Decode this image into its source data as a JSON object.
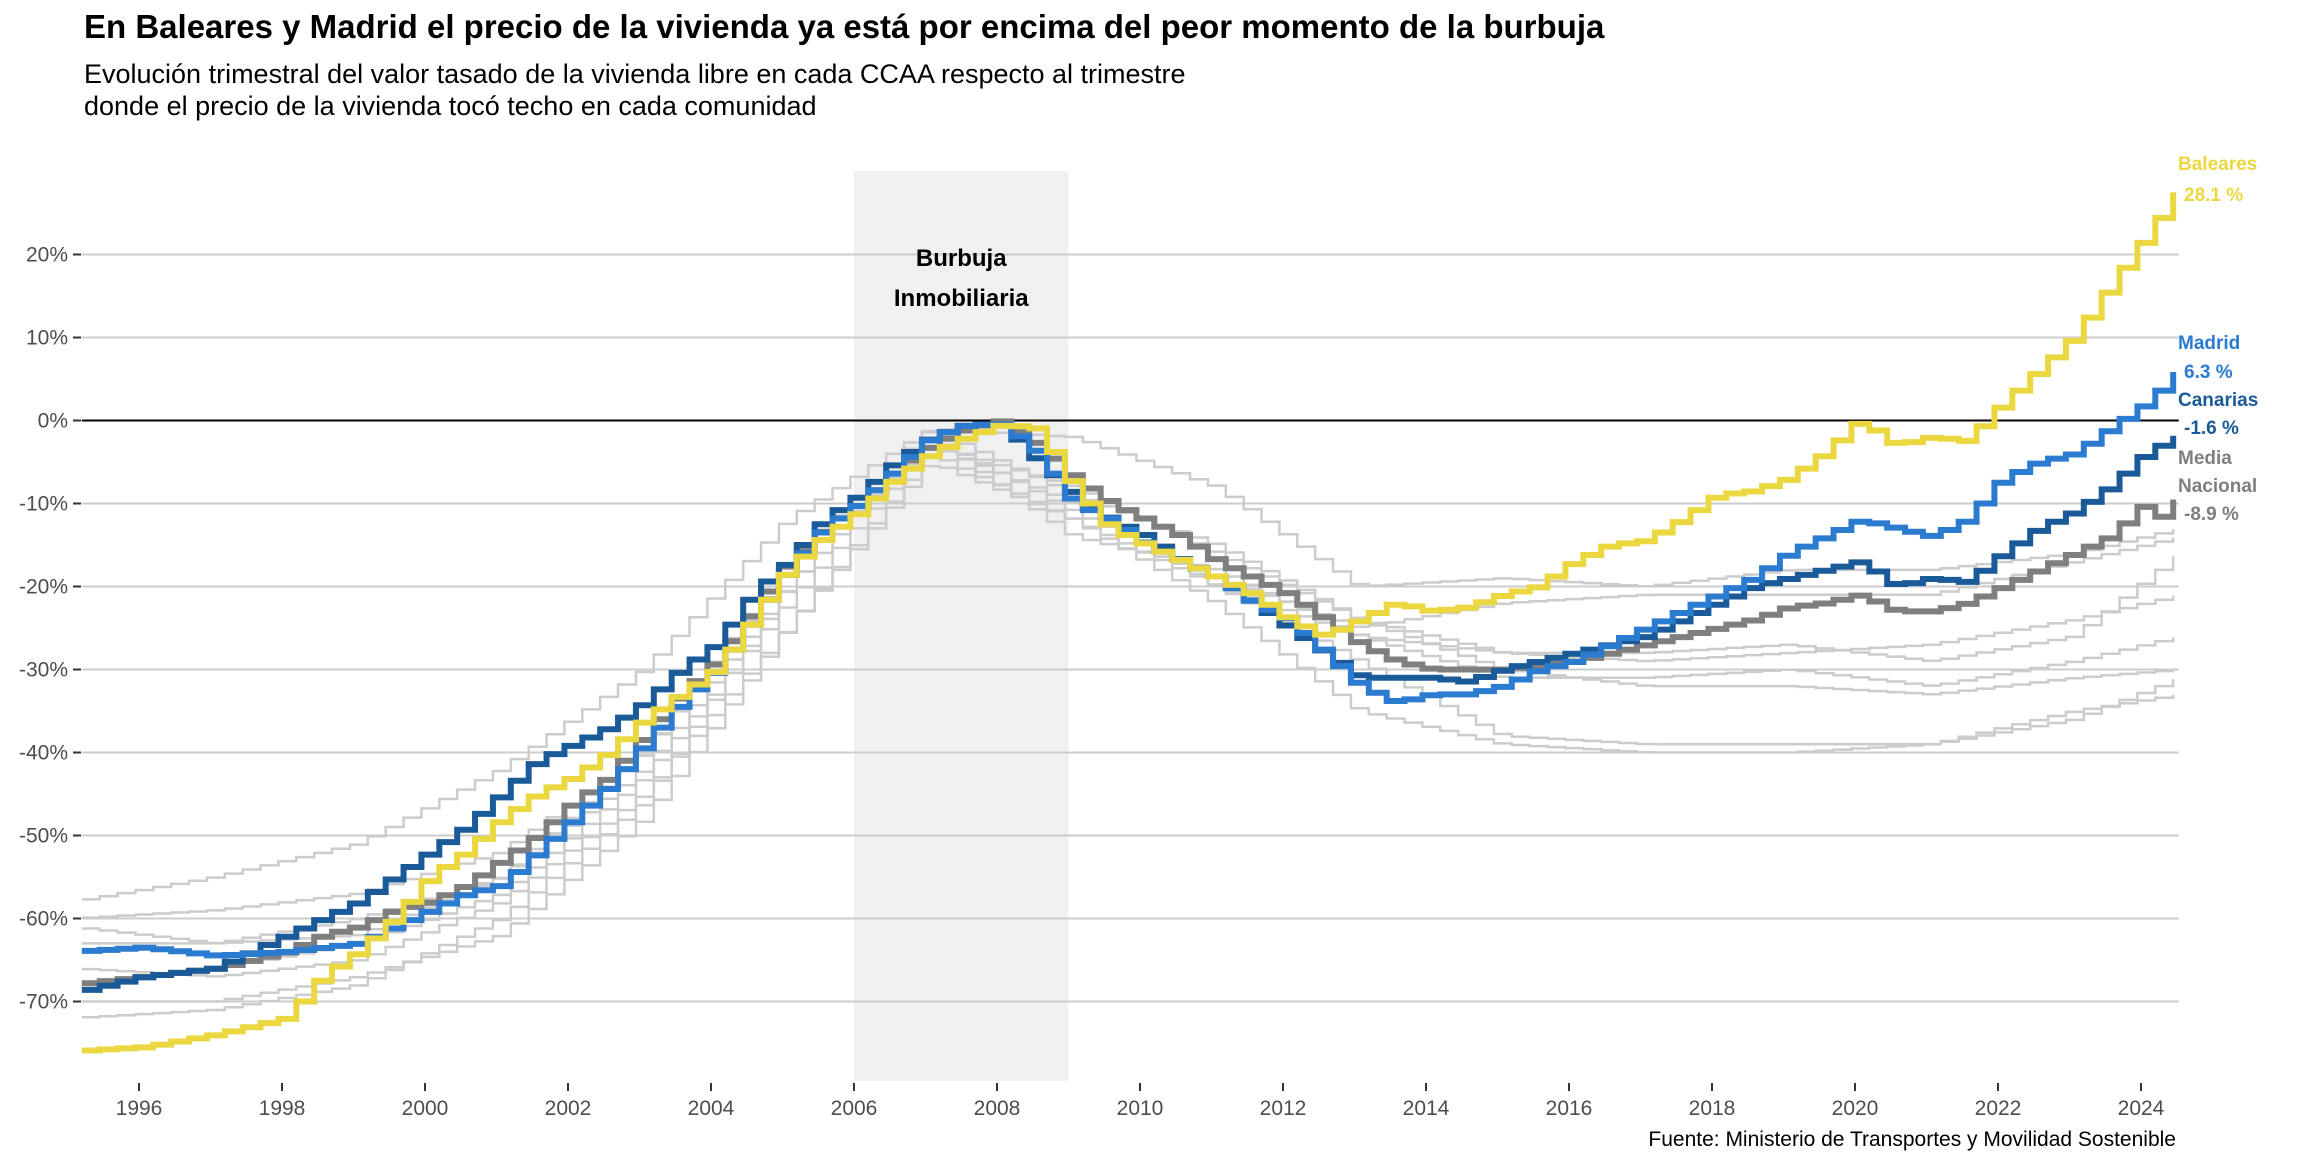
{
  "title": "En Baleares y Madrid el precio de la vivienda ya está por encima del peor momento de la burbuja",
  "subtitle": "Evolución trimestral del valor tasado de la vivienda libre en cada CCAA respecto al trimestre donde el precio de la vivienda tocó techo en cada comunidad",
  "source": "Fuente: Ministerio de Transportes y Movilidad Sostenible",
  "chart_data": {
    "type": "line",
    "step": true,
    "title": "En Baleares y Madrid el precio de la vivienda ya está por encima del peor momento de la burbuja",
    "xlabel": "",
    "ylabel": "",
    "xlim": [
      1995.2,
      2024.5
    ],
    "ylim": [
      -80,
      30
    ],
    "grid": "horizontal",
    "x_ticks": [
      "1996",
      "1998",
      "2000",
      "2002",
      "2004",
      "2006",
      "2008",
      "2010",
      "2012",
      "2014",
      "2016",
      "2018",
      "2020",
      "2022",
      "2024"
    ],
    "y_ticks": [
      "20%",
      "10%",
      "0%",
      "-10%",
      "-20%",
      "-30%",
      "-40%",
      "-50%",
      "-60%",
      "-70%"
    ],
    "y_tick_values": [
      20,
      10,
      0,
      -10,
      -20,
      -30,
      -40,
      -50,
      -60,
      -70
    ],
    "shaded_region": {
      "from": 2006,
      "to": 2009,
      "label_line1": "Burbuja",
      "label_line2": "Inmobiliaria",
      "color": "#f0f0f0"
    },
    "reference_line": 0,
    "highlight_series": [
      {
        "name": "Baleares",
        "end_label": "28.1 %",
        "color": "#ebd840",
        "x": [
          1995,
          1996,
          1997,
          1998,
          1998.5,
          1999,
          1999.5,
          2000,
          2000.5,
          2001,
          2001.5,
          2002,
          2002.5,
          2003,
          2003.5,
          2004,
          2004.5,
          2005,
          2005.5,
          2006,
          2006.5,
          2007,
          2007.5,
          2008,
          2008.5,
          2009,
          2009.5,
          2010,
          2010.5,
          2011,
          2011.5,
          2012,
          2012.5,
          2013,
          2013.5,
          2014,
          2014.5,
          2015,
          2015.5,
          2016,
          2016.5,
          2017,
          2017.5,
          2018,
          2018.5,
          2019,
          2019.5,
          2020,
          2020.5,
          2021,
          2021.5,
          2022,
          2022.5,
          2023,
          2023.5,
          2024,
          2024.25,
          2024.5
        ],
        "y": [
          -76,
          -75.5,
          -74,
          -72,
          -67,
          -64,
          -60,
          -55,
          -52,
          -48,
          -45,
          -43,
          -40,
          -36,
          -33,
          -30,
          -24,
          -18,
          -14,
          -11,
          -7,
          -4,
          -2,
          -0.5,
          -1,
          -8,
          -13,
          -15,
          -17,
          -19,
          -21,
          -24,
          -26,
          -24,
          -22,
          -23,
          -22.5,
          -21,
          -20,
          -17,
          -15,
          -14.5,
          -12,
          -9,
          -8.5,
          -7,
          -4,
          0,
          -3,
          -2,
          -2.5,
          2,
          6,
          10,
          16,
          22,
          25,
          28.1
        ]
      },
      {
        "name": "Madrid",
        "end_label": "6.3 %",
        "color": "#2b7bd0",
        "x": [
          1995,
          1996,
          1997,
          1998,
          1998.5,
          1999,
          1999.5,
          2000,
          2000.5,
          2001,
          2001.5,
          2002,
          2002.5,
          2003,
          2003.5,
          2004,
          2004.5,
          2005,
          2005.5,
          2006,
          2006.5,
          2007,
          2007.5,
          2008,
          2008.5,
          2009,
          2009.5,
          2010,
          2010.5,
          2011,
          2011.5,
          2012,
          2012.5,
          2013,
          2013.5,
          2014,
          2014.5,
          2015,
          2015.5,
          2016,
          2016.5,
          2017,
          2017.5,
          2018,
          2018.5,
          2019,
          2019.5,
          2020,
          2020.5,
          2021,
          2021.5,
          2022,
          2022.5,
          2023,
          2023.5,
          2024,
          2024.25,
          2024.5
        ],
        "y": [
          -64,
          -63.5,
          -64.5,
          -64,
          -63.5,
          -63,
          -61,
          -59,
          -57,
          -56,
          -52,
          -48,
          -44,
          -39,
          -34,
          -30,
          -24,
          -18,
          -13,
          -10,
          -6,
          -2,
          -0.5,
          -0.5,
          -4,
          -10,
          -12,
          -15,
          -17,
          -19,
          -22,
          -24,
          -28,
          -32,
          -34,
          -33,
          -33,
          -32,
          -30,
          -29,
          -27,
          -25,
          -23,
          -21,
          -19,
          -16,
          -14,
          -12,
          -13,
          -14,
          -12,
          -7,
          -5,
          -4,
          -1,
          2,
          4,
          6.3
        ]
      },
      {
        "name": "Canarias",
        "end_label": "-1.6 %",
        "color": "#1a5a99",
        "x": [
          1995,
          1996,
          1997,
          1998,
          1998.5,
          1999,
          1999.5,
          2000,
          2000.5,
          2001,
          2001.5,
          2002,
          2002.5,
          2003,
          2003.5,
          2004,
          2004.5,
          2005,
          2005.5,
          2006,
          2006.5,
          2007,
          2007.5,
          2008,
          2008.5,
          2009,
          2009.5,
          2010,
          2010.5,
          2011,
          2011.5,
          2012,
          2012.5,
          2013,
          2013.5,
          2014,
          2014.5,
          2015,
          2015.5,
          2016,
          2016.5,
          2017,
          2017.5,
          2018,
          2018.5,
          2019,
          2019.5,
          2020,
          2020.5,
          2021,
          2021.5,
          2022,
          2022.5,
          2023,
          2023.5,
          2024,
          2024.5
        ],
        "y": [
          -69,
          -67,
          -66,
          -62,
          -60,
          -58,
          -55,
          -52,
          -49,
          -45,
          -41,
          -39,
          -37,
          -34,
          -30,
          -27,
          -21,
          -17,
          -12,
          -9,
          -5,
          -2,
          -0.5,
          -0.5,
          -5,
          -9,
          -12,
          -14,
          -17,
          -19,
          -22,
          -25,
          -28,
          -31,
          -31,
          -31,
          -31.5,
          -30,
          -29,
          -28,
          -27,
          -26,
          -24,
          -22,
          -20,
          -19,
          -18,
          -17,
          -20,
          -19,
          -19.5,
          -16,
          -13,
          -11,
          -8,
          -4,
          -1.6
        ]
      },
      {
        "name": "Media Nacional",
        "name_line1": "Media",
        "name_line2": "Nacional",
        "end_label": "-8.9 %",
        "color": "#7f7f7f",
        "x": [
          1995,
          1996,
          1997,
          1998,
          1998.5,
          1999,
          1999.5,
          2000,
          2000.5,
          2001,
          2001.5,
          2002,
          2002.5,
          2003,
          2003.5,
          2004,
          2004.5,
          2005,
          2005.5,
          2006,
          2006.5,
          2007,
          2007.5,
          2008,
          2008.5,
          2009,
          2009.5,
          2010,
          2010.5,
          2011,
          2011.5,
          2012,
          2012.5,
          2013,
          2013.5,
          2014,
          2014.5,
          2015,
          2015.5,
          2016,
          2016.5,
          2017,
          2017.5,
          2018,
          2018.5,
          2019,
          2019.5,
          2020,
          2020.5,
          2021,
          2021.5,
          2022,
          2022.5,
          2023,
          2023.5,
          2024,
          2024.25,
          2024.5
        ],
        "y": [
          -68,
          -67,
          -66,
          -64,
          -62,
          -61,
          -59,
          -58,
          -56,
          -53,
          -50,
          -46,
          -43,
          -38,
          -33,
          -29,
          -23,
          -17,
          -13,
          -10,
          -6,
          -3,
          -1,
          0,
          -3,
          -7,
          -10,
          -12,
          -14,
          -17,
          -19,
          -21,
          -24,
          -27,
          -29,
          -30,
          -30,
          -30,
          -29.5,
          -29,
          -28,
          -27,
          -26,
          -25,
          -24,
          -22.5,
          -22,
          -21,
          -23,
          -23,
          -22,
          -20,
          -18,
          -16,
          -14,
          -10,
          -12,
          -8.9
        ]
      }
    ],
    "background_series_color": "#cccccc",
    "background_series": [
      {
        "x": [
          1995,
          1997,
          1999,
          2001,
          2003,
          2005,
          2007,
          2009,
          2011,
          2013,
          2015,
          2017,
          2019,
          2021,
          2023,
          2024.5
        ],
        "y": [
          -58,
          -55,
          -51,
          -42,
          -30,
          -12,
          -1,
          -2,
          -8,
          -20,
          -19,
          -20,
          -18,
          -18,
          -16,
          -13
        ]
      },
      {
        "x": [
          1995,
          1997,
          1999,
          2001,
          2003,
          2005,
          2007,
          2009,
          2011,
          2013,
          2015,
          2017,
          2019,
          2021,
          2023,
          2024.5
        ],
        "y": [
          -60,
          -59,
          -57,
          -52,
          -40,
          -18,
          -3,
          -10,
          -20,
          -29,
          -38,
          -39,
          -39,
          -39,
          -35,
          -33
        ]
      },
      {
        "x": [
          1995,
          1997,
          1999,
          2001,
          2003,
          2005,
          2007,
          2009,
          2011,
          2013,
          2015,
          2017,
          2019,
          2021,
          2023,
          2024.5
        ],
        "y": [
          -66,
          -67,
          -65,
          -58,
          -45,
          -25,
          -5,
          -12,
          -22,
          -35,
          -39,
          -40,
          -40,
          -39,
          -36,
          -31
        ]
      },
      {
        "x": [
          1995,
          1997,
          1999,
          2001,
          2003,
          2005,
          2007,
          2009,
          2011,
          2013,
          2015,
          2017,
          2019,
          2021,
          2023,
          2024.5
        ],
        "y": [
          -70,
          -70,
          -67,
          -62,
          -48,
          -25,
          -4,
          -12,
          -20,
          -26,
          -28,
          -29,
          -28,
          -27,
          -24,
          -21
        ]
      },
      {
        "x": [
          1995,
          1997,
          1999,
          2001,
          2003,
          2005,
          2007,
          2009,
          2011,
          2013,
          2015,
          2017,
          2019,
          2021,
          2023,
          2024.5
        ],
        "y": [
          -63,
          -63,
          -62,
          -55,
          -42,
          -20,
          -2,
          -14,
          -18,
          -26,
          -31,
          -31,
          -30,
          -32,
          -29,
          -26
        ]
      },
      {
        "x": [
          1995,
          1997,
          1999,
          2001,
          2003,
          2005,
          2007,
          2009,
          2011,
          2013,
          2015,
          2017,
          2019,
          2021,
          2023,
          2024.5
        ],
        "y": [
          -68,
          -66,
          -63,
          -57,
          -43,
          -22,
          -3,
          -8,
          -16,
          -24,
          -28,
          -28,
          -27,
          -29,
          -26,
          -16
        ]
      },
      {
        "x": [
          1995,
          1997,
          1999,
          2001,
          2003,
          2005,
          2007,
          2009,
          2011,
          2013,
          2015,
          2017,
          2019,
          2021,
          2023,
          2024.5
        ],
        "y": [
          -72,
          -71,
          -68,
          -60,
          -46,
          -20,
          -2,
          -11,
          -19,
          -25,
          -22,
          -21,
          -21,
          -21,
          -17,
          -14
        ]
      },
      {
        "x": [
          1995,
          1997,
          1999,
          2001,
          2003,
          2005,
          2007,
          2009,
          2011,
          2013,
          2015,
          2017,
          2019,
          2021,
          2023,
          2024.5
        ],
        "y": [
          -61,
          -63,
          -60,
          -55,
          -40,
          -17,
          -1,
          -9,
          -15,
          -24,
          -30,
          -32,
          -32,
          -33,
          -31,
          -30
        ]
      }
    ]
  }
}
